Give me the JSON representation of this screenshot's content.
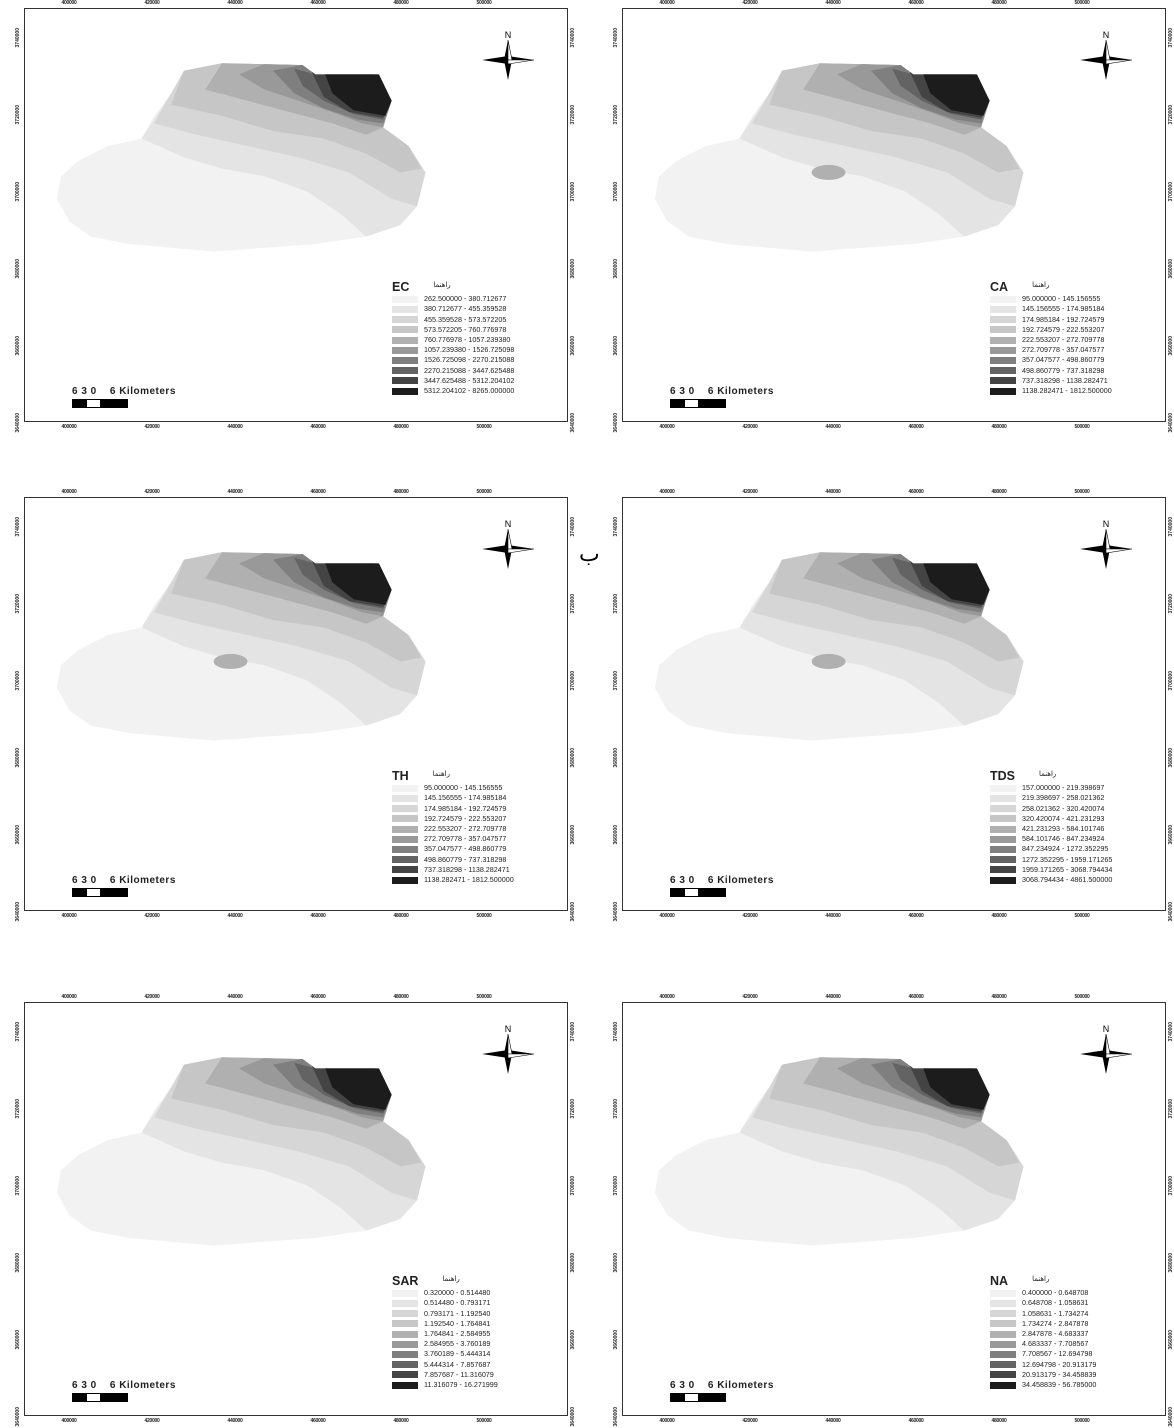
{
  "panels": [
    {
      "id": "ec",
      "legend_arabic": "راهنما",
      "legend_title": "EC",
      "classes": [
        "262.500000 - 380.712677",
        "380.712677 - 455.359528",
        "455.359528 - 573.572205",
        "573.572205 - 760.776978",
        "760.776978 - 1057.239380",
        "1057.239380 - 1526.725098",
        "1526.725098 - 2270.215088",
        "2270.215088 - 3447.625488",
        "3447.625488 - 5312.204102",
        "5312.204102 - 8265.000000"
      ],
      "scale_numbers": "6 3 0",
      "scale_unit": "6 Kilometers",
      "x_ticks": [
        "400000",
        "420000",
        "440000",
        "460000",
        "480000",
        "500000"
      ],
      "y_ticks": [
        "3740000",
        "3720000",
        "3700000",
        "3680000",
        "3660000",
        "3640000"
      ]
    },
    {
      "id": "ca",
      "legend_arabic": "راهنما",
      "legend_title": "CA",
      "classes": [
        "95.000000 - 145.156555",
        "145.156555 - 174.985184",
        "174.985184 - 192.724579",
        "192.724579 - 222.553207",
        "222.553207 - 272.709778",
        "272.709778 - 357.047577",
        "357.047577 - 498.860779",
        "498.860779 - 737.318298",
        "737.318298 - 1138.282471",
        "1138.282471 - 1812.500000"
      ],
      "scale_numbers": "6 3 0",
      "scale_unit": "6 Kilometers",
      "x_ticks": [
        "400000",
        "420000",
        "440000",
        "460000",
        "480000",
        "500000"
      ],
      "y_ticks": [
        "3740000",
        "3720000",
        "3700000",
        "3680000",
        "3660000",
        "3640000"
      ]
    },
    {
      "id": "th",
      "legend_arabic": "راهنما",
      "legend_title": "TH",
      "classes": [
        "95.000000 - 145.156555",
        "145.156555 - 174.985184",
        "174.985184 - 192.724579",
        "192.724579 - 222.553207",
        "222.553207 - 272.709778",
        "272.709778 - 357.047577",
        "357.047577 - 498.860779",
        "498.860779 - 737.318298",
        "737.318298 - 1138.282471",
        "1138.282471 - 1812.500000"
      ],
      "scale_numbers": "6 3 0",
      "scale_unit": "6 Kilometers",
      "x_ticks": [
        "400000",
        "420000",
        "440000",
        "460000",
        "480000",
        "500000"
      ],
      "y_ticks": [
        "3740000",
        "3720000",
        "3700000",
        "3680000",
        "3660000",
        "3640000"
      ]
    },
    {
      "id": "tds",
      "legend_arabic": "راهنما",
      "legend_title": "TDS",
      "classes": [
        "157.000000 - 219.398697",
        "219.398697 - 258.021362",
        "258.021362 - 320.420074",
        "320.420074 - 421.231293",
        "421.231293 - 584.101746",
        "584.101746 - 847.234924",
        "847.234924 - 1272.352295",
        "1272.352295 - 1959.171265",
        "1959.171265 - 3068.794434",
        "3068.794434 - 4861.500000"
      ],
      "scale_numbers": "6 3 0",
      "scale_unit": "6 Kilometers",
      "x_ticks": [
        "400000",
        "420000",
        "440000",
        "460000",
        "480000",
        "500000"
      ],
      "y_ticks": [
        "3740000",
        "3720000",
        "3700000",
        "3680000",
        "3660000",
        "3640000"
      ]
    },
    {
      "id": "sar",
      "legend_arabic": "راهنما",
      "legend_title": "SAR",
      "classes": [
        "0.320000 - 0.514480",
        "0.514480 - 0.793171",
        "0.793171 - 1.192540",
        "1.192540 - 1.764841",
        "1.764841 - 2.584955",
        "2.584955 - 3.760189",
        "3.760189 - 5.444314",
        "5.444314 - 7.857687",
        "7.857687 - 11.316079",
        "11.316079 - 16.271999"
      ],
      "scale_numbers": "6 3 0",
      "scale_unit": "6 Kilometers",
      "x_ticks": [
        "400000",
        "420000",
        "440000",
        "460000",
        "480000",
        "500000"
      ],
      "y_ticks": [
        "3740000",
        "3720000",
        "3700000",
        "3680000",
        "3660000",
        "3640000"
      ]
    },
    {
      "id": "na",
      "legend_arabic": "راهنما",
      "legend_title": "NA",
      "classes": [
        "0.400000 - 0.648708",
        "0.648708 - 1.058631",
        "1.058631 - 1.734274",
        "1.734274 - 2.847878",
        "2.847878 - 4.683337",
        "4.683337 - 7.708567",
        "7.708567 - 12.694798",
        "12.694798 - 20.913179",
        "20.913179 - 34.458839",
        "34.458839 - 56.785000"
      ],
      "scale_numbers": "6 3 0",
      "scale_unit": "6 Kilometers",
      "x_ticks": [
        "400000",
        "420000",
        "440000",
        "460000",
        "480000",
        "500000"
      ],
      "y_ticks": [
        "3740000",
        "3720000",
        "3700000",
        "3680000",
        "3660000",
        "3640000"
      ]
    }
  ],
  "class_colors": [
    "#f2f2f2",
    "#e4e4e4",
    "#d6d6d6",
    "#c6c6c6",
    "#b0b0b0",
    "#999999",
    "#7f7f7f",
    "#636363",
    "#444444",
    "#1c1c1c"
  ],
  "north_label": "N",
  "stray_char": "ب"
}
